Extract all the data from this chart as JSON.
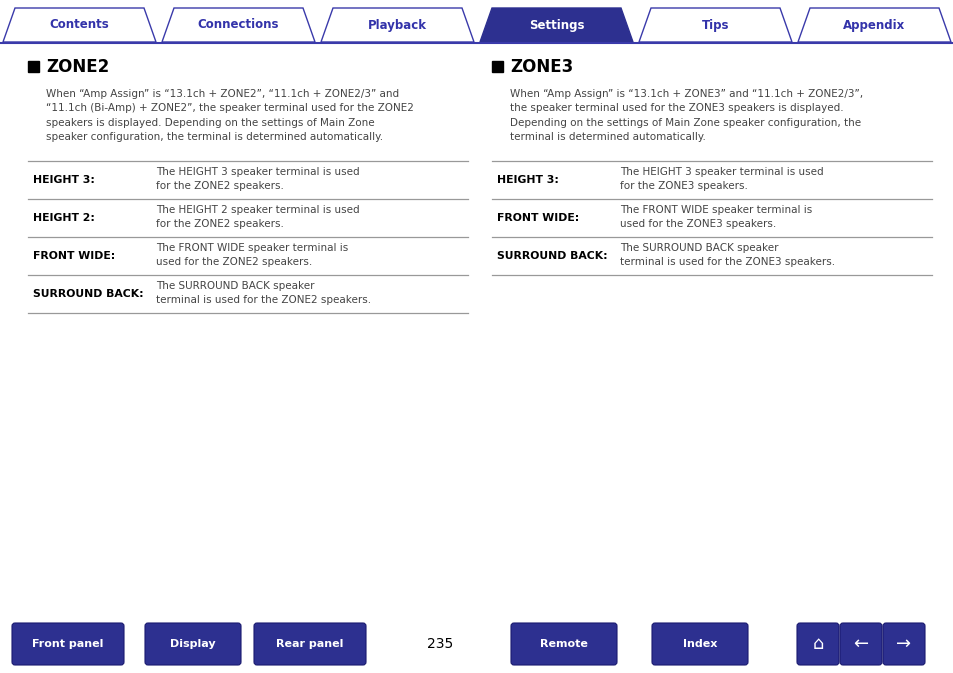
{
  "bg_color": "#ffffff",
  "nav_tabs": [
    "Contents",
    "Connections",
    "Playback",
    "Settings",
    "Tips",
    "Appendix"
  ],
  "nav_active": 3,
  "nav_color_active": "#2d3090",
  "nav_color_inactive": "#ffffff",
  "nav_text_color_active": "#ffffff",
  "nav_text_color_inactive": "#3333aa",
  "nav_border_color": "#3a3aaa",
  "nav_line_color": "#3a3aaa",
  "title_color": "#000000",
  "text_color": "#444444",
  "zone2_title": "ZONE2",
  "zone3_title": "ZONE3",
  "zone2_intro": "When “Amp Assign” is “13.1ch + ZONE2”, “11.1ch + ZONE2/3” and\n“11.1ch (Bi-Amp) + ZONE2”, the speaker terminal used for the ZONE2\nspeakers is displayed. Depending on the settings of Main Zone\nspeaker configuration, the terminal is determined automatically.",
  "zone3_intro": "When “Amp Assign” is “13.1ch + ZONE3” and “11.1ch + ZONE2/3”,\nthe speaker terminal used for the ZONE3 speakers is displayed.\nDepending on the settings of Main Zone speaker configuration, the\nterminal is determined automatically.",
  "zone2_rows": [
    [
      "HEIGHT 3:",
      "The HEIGHT 3 speaker terminal is used\nfor the ZONE2 speakers."
    ],
    [
      "HEIGHT 2:",
      "The HEIGHT 2 speaker terminal is used\nfor the ZONE2 speakers."
    ],
    [
      "FRONT WIDE:",
      "The FRONT WIDE speaker terminal is\nused for the ZONE2 speakers."
    ],
    [
      "SURROUND BACK:",
      "The SURROUND BACK speaker\nterminal is used for the ZONE2 speakers."
    ]
  ],
  "zone3_rows": [
    [
      "HEIGHT 3:",
      "The HEIGHT 3 speaker terminal is used\nfor the ZONE3 speakers."
    ],
    [
      "FRONT WIDE:",
      "The FRONT WIDE speaker terminal is\nused for the ZONE3 speakers."
    ],
    [
      "SURROUND BACK:",
      "The SURROUND BACK speaker\nterminal is used for the ZONE3 speakers."
    ]
  ],
  "bottom_buttons": [
    "Front panel",
    "Display",
    "Rear panel",
    "Remote",
    "Index"
  ],
  "page_number": "235",
  "button_color": "#2d3090",
  "button_text_color": "#ffffff",
  "table_line_color": "#999999",
  "separator_color": "#cccccc"
}
